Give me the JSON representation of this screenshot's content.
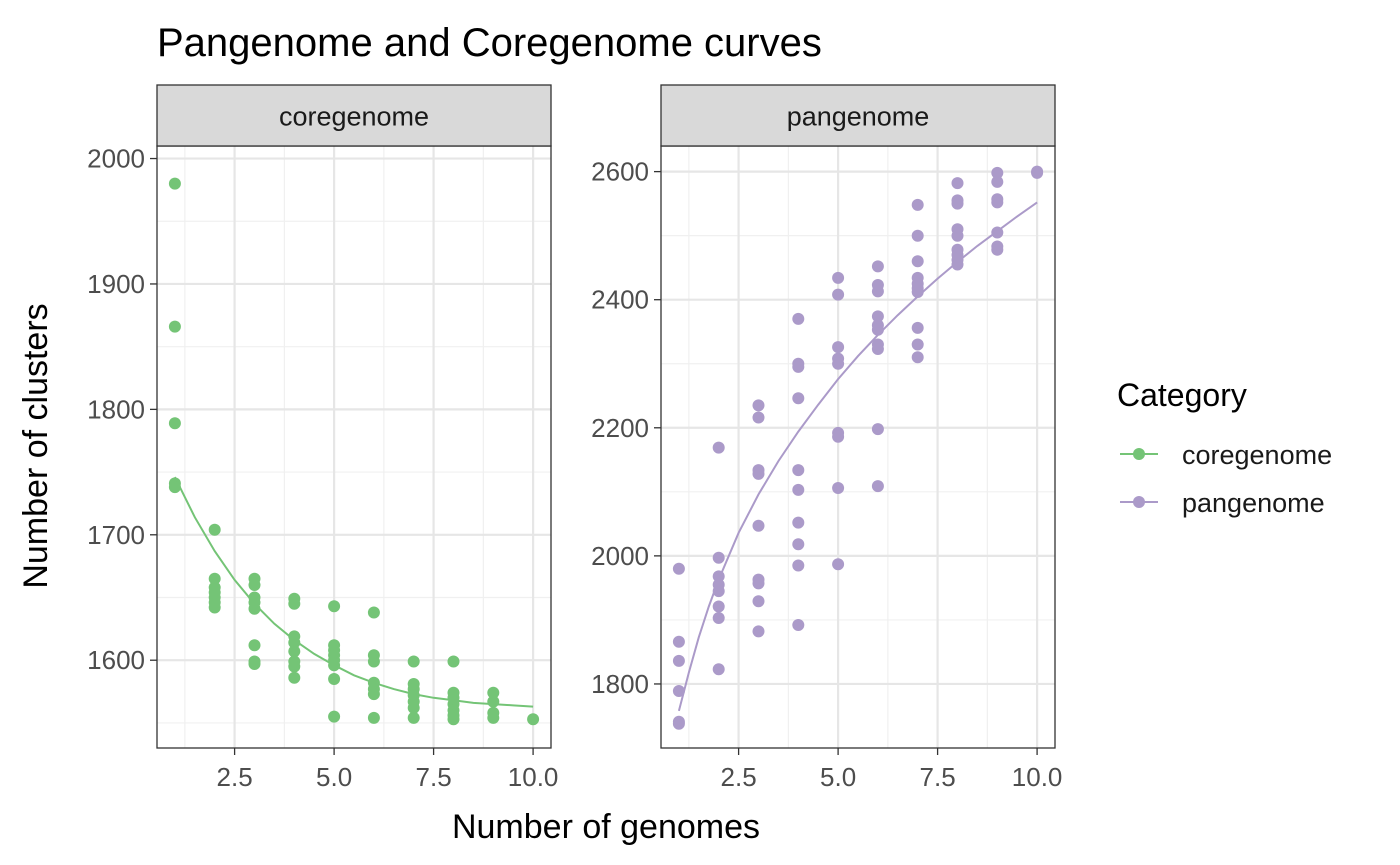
{
  "chart_data": {
    "type": "scatter",
    "title": "Pangenome and Coregenome curves",
    "xlabel": "Number of genomes",
    "ylabel": "Number of clusters",
    "grid": true,
    "legend": {
      "title": "Category",
      "placement": "right",
      "entries": [
        {
          "name": "coregenome",
          "color": "#74c476"
        },
        {
          "name": "pangenome",
          "color": "#ab9ac9"
        }
      ]
    },
    "panels": [
      {
        "strip_label": "coregenome",
        "color": "#74c476",
        "xlim": [
          0.55,
          10.45
        ],
        "ylim": [
          1530,
          2010
        ],
        "x_ticks": [
          2.5,
          5.0,
          7.5,
          10.0
        ],
        "x_tick_labels": [
          "2.5",
          "5.0",
          "7.5",
          "10.0"
        ],
        "y_ticks": [
          1600,
          1700,
          1800,
          1900,
          2000
        ],
        "y_tick_labels": [
          "1600",
          "1700",
          "1800",
          "1900",
          "2000"
        ],
        "points": [
          [
            1,
            1980
          ],
          [
            1,
            1866
          ],
          [
            1,
            1789
          ],
          [
            1,
            1741
          ],
          [
            1,
            1738
          ],
          [
            2,
            1704
          ],
          [
            2,
            1665
          ],
          [
            2,
            1658
          ],
          [
            2,
            1654
          ],
          [
            2,
            1650
          ],
          [
            2,
            1646
          ],
          [
            2,
            1642
          ],
          [
            3,
            1665
          ],
          [
            3,
            1660
          ],
          [
            3,
            1650
          ],
          [
            3,
            1646
          ],
          [
            3,
            1641
          ],
          [
            3,
            1612
          ],
          [
            3,
            1599
          ],
          [
            3,
            1597
          ],
          [
            4,
            1649
          ],
          [
            4,
            1645
          ],
          [
            4,
            1619
          ],
          [
            4,
            1614
          ],
          [
            4,
            1607
          ],
          [
            4,
            1599
          ],
          [
            4,
            1595
          ],
          [
            4,
            1586
          ],
          [
            5,
            1643
          ],
          [
            5,
            1612
          ],
          [
            5,
            1608
          ],
          [
            5,
            1604
          ],
          [
            5,
            1600
          ],
          [
            5,
            1596
          ],
          [
            5,
            1585
          ],
          [
            5,
            1555
          ],
          [
            6,
            1638
          ],
          [
            6,
            1604
          ],
          [
            6,
            1599
          ],
          [
            6,
            1582
          ],
          [
            6,
            1577
          ],
          [
            6,
            1573
          ],
          [
            6,
            1554
          ],
          [
            7,
            1599
          ],
          [
            7,
            1581
          ],
          [
            7,
            1577
          ],
          [
            7,
            1572
          ],
          [
            7,
            1567
          ],
          [
            7,
            1562
          ],
          [
            7,
            1554
          ],
          [
            8,
            1599
          ],
          [
            8,
            1574
          ],
          [
            8,
            1570
          ],
          [
            8,
            1565
          ],
          [
            8,
            1560
          ],
          [
            8,
            1556
          ],
          [
            8,
            1553
          ],
          [
            9,
            1574
          ],
          [
            9,
            1567
          ],
          [
            9,
            1558
          ],
          [
            9,
            1554
          ],
          [
            10,
            1553
          ]
        ],
        "fit": [
          [
            1.0,
            1746
          ],
          [
            1.5,
            1714
          ],
          [
            2.0,
            1687
          ],
          [
            2.5,
            1664
          ],
          [
            3.0,
            1645
          ],
          [
            3.5,
            1629
          ],
          [
            4.0,
            1616
          ],
          [
            4.5,
            1605
          ],
          [
            5.0,
            1596
          ],
          [
            5.5,
            1588
          ],
          [
            6.0,
            1582
          ],
          [
            6.5,
            1577
          ],
          [
            7.0,
            1573
          ],
          [
            7.5,
            1570
          ],
          [
            8.0,
            1568
          ],
          [
            8.5,
            1566
          ],
          [
            9.0,
            1565
          ],
          [
            9.5,
            1564
          ],
          [
            10.0,
            1563
          ]
        ]
      },
      {
        "strip_label": "pangenome",
        "color": "#ab9ac9",
        "xlim": [
          0.55,
          10.45
        ],
        "ylim": [
          1700,
          2640
        ],
        "x_ticks": [
          2.5,
          5.0,
          7.5,
          10.0
        ],
        "x_tick_labels": [
          "2.5",
          "5.0",
          "7.5",
          "10.0"
        ],
        "y_ticks": [
          1800,
          2000,
          2200,
          2400,
          2600
        ],
        "y_tick_labels": [
          "1800",
          "2000",
          "2200",
          "2400",
          "2600"
        ],
        "points": [
          [
            1,
            1980
          ],
          [
            1,
            1866
          ],
          [
            1,
            1836
          ],
          [
            1,
            1789
          ],
          [
            1,
            1741
          ],
          [
            1,
            1738
          ],
          [
            2,
            2169
          ],
          [
            2,
            1997
          ],
          [
            2,
            1968
          ],
          [
            2,
            1955
          ],
          [
            2,
            1945
          ],
          [
            2,
            1921
          ],
          [
            2,
            1903
          ],
          [
            2,
            1823
          ],
          [
            3,
            2235
          ],
          [
            3,
            2216
          ],
          [
            3,
            2134
          ],
          [
            3,
            2128
          ],
          [
            3,
            2047
          ],
          [
            3,
            1963
          ],
          [
            3,
            1957
          ],
          [
            3,
            1929
          ],
          [
            3,
            1882
          ],
          [
            4,
            2370
          ],
          [
            4,
            2300
          ],
          [
            4,
            2295
          ],
          [
            4,
            2246
          ],
          [
            4,
            2134
          ],
          [
            4,
            2103
          ],
          [
            4,
            2052
          ],
          [
            4,
            2018
          ],
          [
            4,
            1985
          ],
          [
            4,
            1892
          ],
          [
            5,
            2434
          ],
          [
            5,
            2408
          ],
          [
            5,
            2326
          ],
          [
            5,
            2308
          ],
          [
            5,
            2300
          ],
          [
            5,
            2192
          ],
          [
            5,
            2186
          ],
          [
            5,
            2106
          ],
          [
            5,
            1987
          ],
          [
            6,
            2452
          ],
          [
            6,
            2423
          ],
          [
            6,
            2413
          ],
          [
            6,
            2374
          ],
          [
            6,
            2360
          ],
          [
            6,
            2353
          ],
          [
            6,
            2330
          ],
          [
            6,
            2323
          ],
          [
            6,
            2198
          ],
          [
            6,
            2109
          ],
          [
            7,
            2548
          ],
          [
            7,
            2500
          ],
          [
            7,
            2460
          ],
          [
            7,
            2434
          ],
          [
            7,
            2425
          ],
          [
            7,
            2418
          ],
          [
            7,
            2412
          ],
          [
            7,
            2356
          ],
          [
            7,
            2330
          ],
          [
            7,
            2310
          ],
          [
            8,
            2582
          ],
          [
            8,
            2555
          ],
          [
            8,
            2550
          ],
          [
            8,
            2510
          ],
          [
            8,
            2500
          ],
          [
            8,
            2478
          ],
          [
            8,
            2470
          ],
          [
            8,
            2462
          ],
          [
            8,
            2455
          ],
          [
            9,
            2598
          ],
          [
            9,
            2584
          ],
          [
            9,
            2557
          ],
          [
            9,
            2552
          ],
          [
            9,
            2505
          ],
          [
            9,
            2483
          ],
          [
            9,
            2478
          ],
          [
            10,
            2600
          ],
          [
            10,
            2598
          ]
        ],
        "fit": [
          [
            1.0,
            1758
          ],
          [
            1.25,
            1818
          ],
          [
            1.5,
            1873
          ],
          [
            1.75,
            1921
          ],
          [
            2.0,
            1963
          ],
          [
            2.5,
            2036
          ],
          [
            3.0,
            2096
          ],
          [
            3.5,
            2148
          ],
          [
            4.0,
            2194
          ],
          [
            4.5,
            2236
          ],
          [
            5.0,
            2276
          ],
          [
            5.5,
            2312
          ],
          [
            6.0,
            2345
          ],
          [
            6.5,
            2376
          ],
          [
            7.0,
            2405
          ],
          [
            7.5,
            2433
          ],
          [
            8.0,
            2459
          ],
          [
            8.5,
            2484
          ],
          [
            9.0,
            2507
          ],
          [
            9.5,
            2530
          ],
          [
            10.0,
            2552
          ]
        ]
      }
    ]
  }
}
